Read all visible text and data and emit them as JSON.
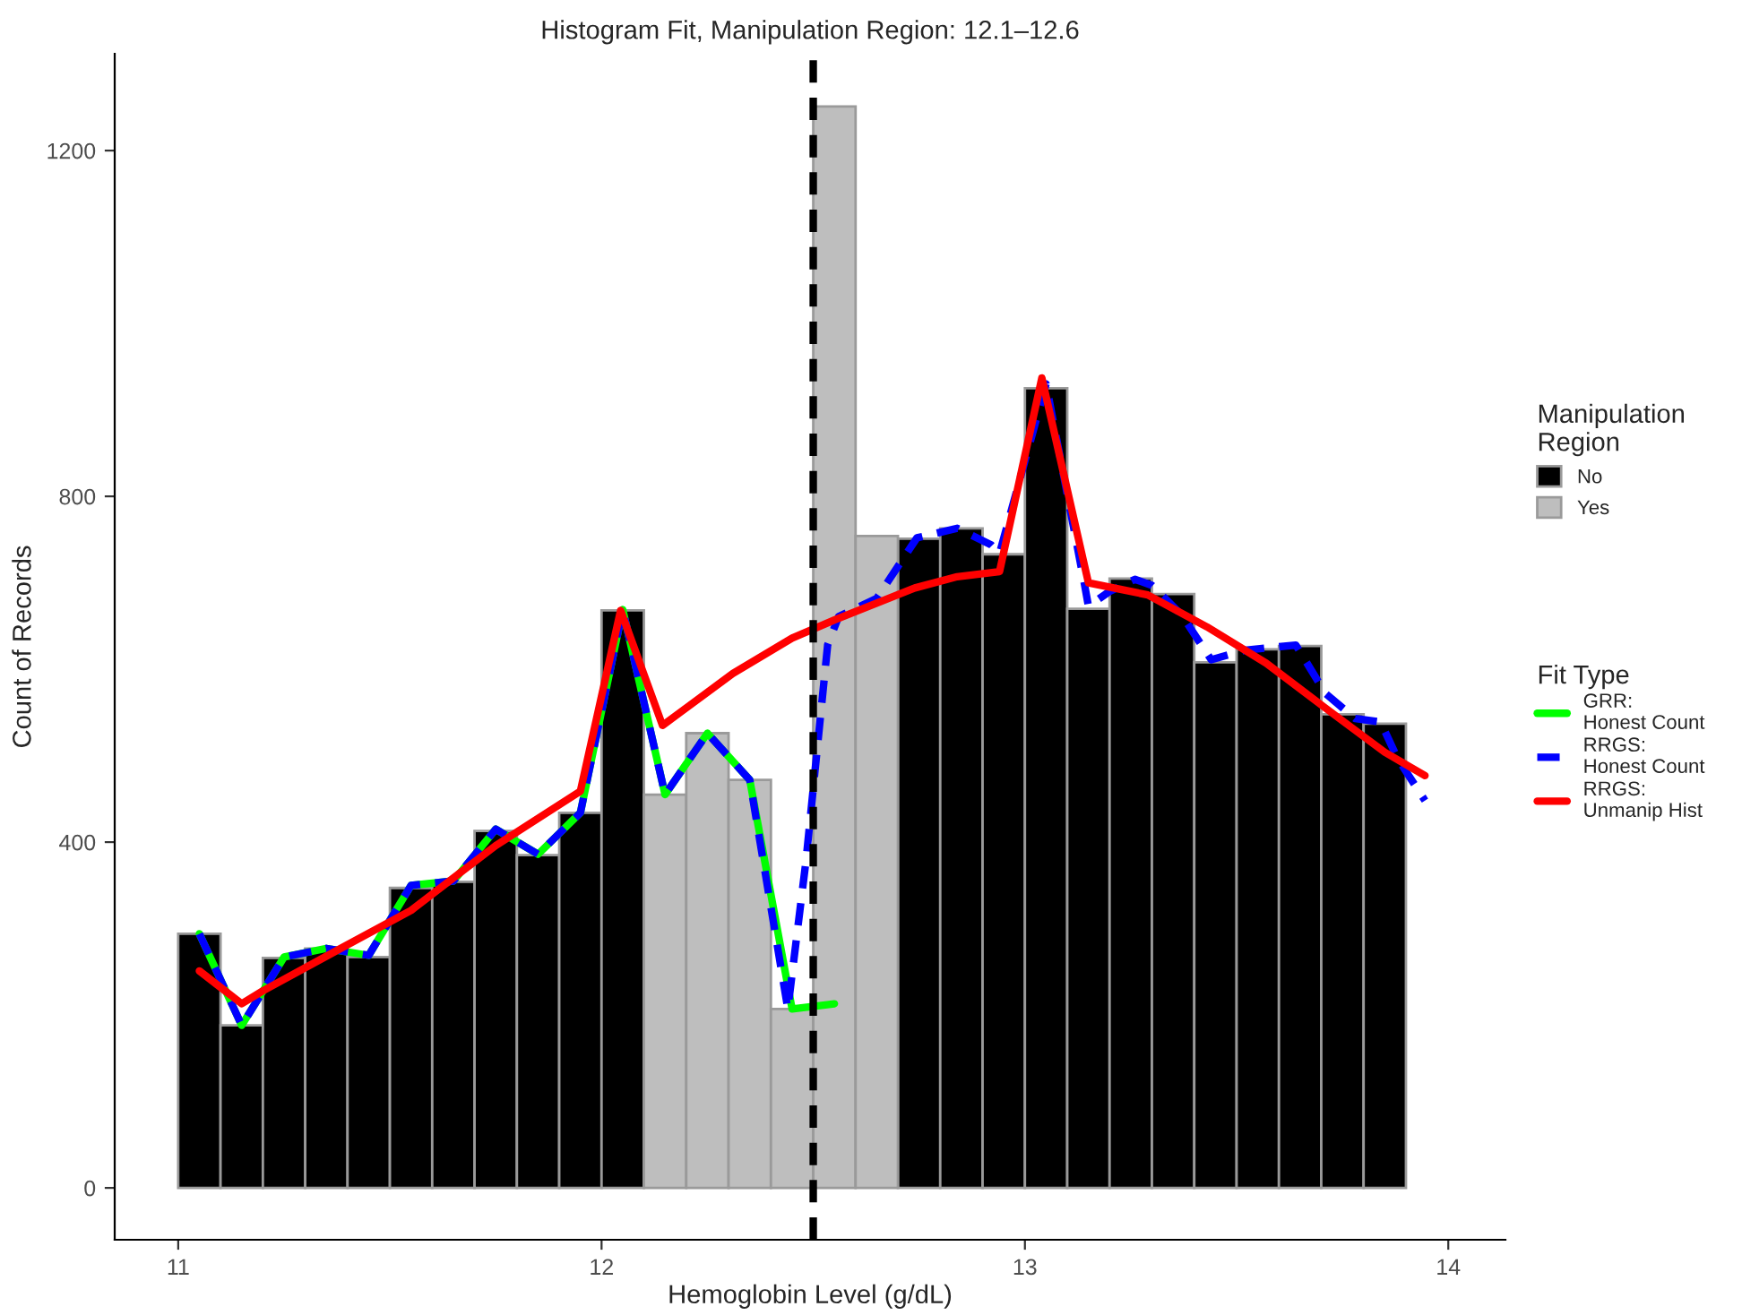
{
  "chart_data": {
    "type": "histogram",
    "title": "Histogram Fit, Manipulation Region: 12.1–12.6",
    "xlabel": "Hemoglobin Level (g/dL)",
    "ylabel": "Count of Records",
    "legend_title": "Manipulation\nRegion",
    "annotations": [
      "Fit Type"
    ],
    "bins": [
      11.0,
      11.1,
      11.2,
      11.3,
      11.4,
      11.5,
      11.6,
      11.7,
      11.8,
      11.9,
      12.0,
      12.1,
      12.2,
      12.3,
      12.4,
      12.5,
      12.6,
      12.7,
      12.8,
      12.9,
      13.0,
      13.1,
      13.2,
      13.3,
      13.4,
      13.5,
      13.6,
      13.7,
      13.8,
      13.9
    ],
    "series": [
      {
        "name": "No",
        "color": "#000000",
        "values": [
          294,
          188,
          266,
          277,
          267,
          347,
          354,
          413,
          385,
          434,
          668,
          null,
          null,
          null,
          null,
          null,
          null,
          751,
          763,
          733,
          925,
          670,
          705,
          687,
          608,
          623,
          627,
          548,
          537
        ]
      },
      {
        "name": "Yes",
        "color": "#bebebe",
        "values": [
          null,
          null,
          null,
          null,
          null,
          null,
          null,
          null,
          null,
          null,
          null,
          455,
          526,
          472,
          207,
          1251,
          754,
          null,
          null,
          null,
          null,
          null,
          null,
          null,
          null,
          null,
          null,
          null,
          null
        ]
      },
      {
        "name": "GRR:\nHonest Count",
        "type": "line",
        "color": "#00ff00",
        "line_style": "solid",
        "x": [
          11.05,
          11.15,
          11.25,
          11.35,
          11.45,
          11.55,
          11.65,
          11.75,
          11.85,
          11.95,
          12.05,
          12.15,
          12.25,
          12.35,
          12.45,
          12.55
        ],
        "values": [
          294,
          188,
          267,
          277,
          269,
          350,
          355,
          415,
          386,
          434,
          669,
          455,
          526,
          472,
          207,
          213
        ]
      },
      {
        "name": "RRGS:\nHonest Count",
        "type": "line",
        "color": "#0000ff",
        "line_style": "dashed",
        "x": [
          11.05,
          11.15,
          11.25,
          11.35,
          11.45,
          11.55,
          11.65,
          11.75,
          11.85,
          11.95,
          12.05,
          12.15,
          12.25,
          12.35,
          12.44,
          12.483,
          12.534,
          12.56,
          12.65,
          12.745,
          12.84,
          12.92,
          12.94,
          13.05,
          13.14,
          13.15,
          13.2,
          13.26,
          13.3,
          13.37,
          13.44,
          13.52,
          13.64,
          13.71,
          13.78,
          13.84,
          13.88,
          13.945
        ],
        "values": [
          294,
          188,
          267,
          277,
          269,
          350,
          355,
          415,
          386,
          434,
          669,
          455,
          526,
          472,
          207,
          379,
          628,
          661,
          682,
          752,
          763,
          744,
          734,
          930,
          700,
          673,
          690,
          704,
          697,
          663,
          611,
          622,
          628,
          572,
          543,
          539,
          497,
          448
        ]
      },
      {
        "name": "RRGS:\nUnmanip Hist",
        "type": "line",
        "color": "#ff0000",
        "line_style": "solid",
        "x": [
          11.05,
          11.15,
          11.2,
          11.38,
          11.55,
          11.75,
          11.95,
          12.045,
          12.144,
          12.31,
          12.45,
          12.55,
          12.74,
          12.84,
          12.94,
          13.04,
          13.15,
          13.29,
          13.43,
          13.57,
          13.71,
          13.85,
          13.945
        ],
        "values": [
          251,
          213,
          228,
          276,
          321,
          396,
          459,
          668,
          535,
          595,
          636,
          657,
          694,
          707,
          713,
          937,
          700,
          686,
          649,
          607,
          555,
          504,
          477
        ]
      }
    ],
    "ref_lines": [
      {
        "axis": "x",
        "value": 12.5,
        "color": "#000000",
        "line_style": "dashed"
      }
    ],
    "xlim": [
      10.85,
      14.135
    ],
    "ylim": [
      -60,
      1312
    ],
    "xticks": [
      11,
      12,
      13,
      14
    ],
    "yticks": [
      0,
      400,
      800,
      1200
    ],
    "grid": false,
    "legend": "right"
  }
}
